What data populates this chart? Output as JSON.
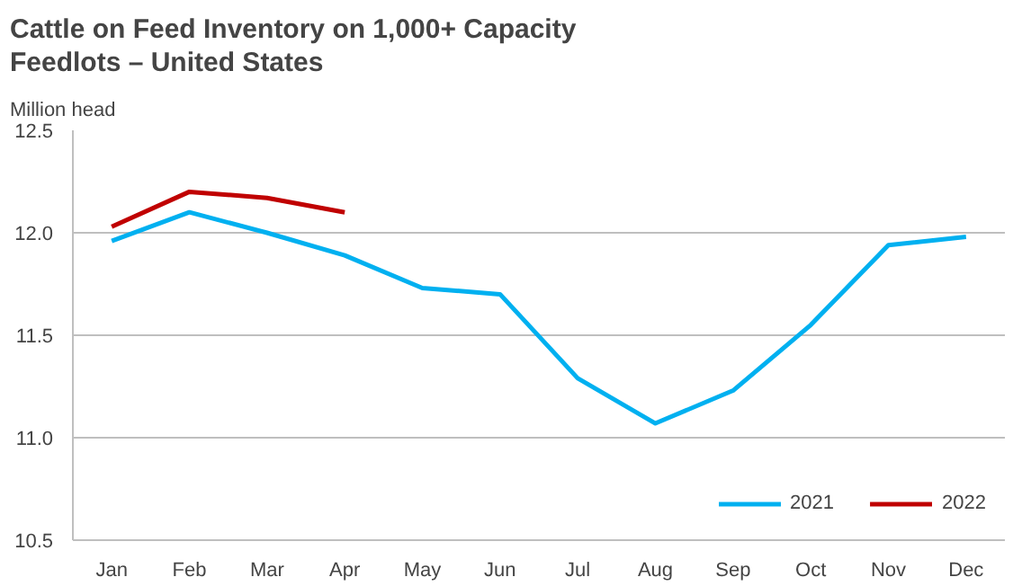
{
  "chart_data": {
    "type": "line",
    "title": "Cattle on Feed Inventory on 1,000+ Capacity Feedlots – United States",
    "ylabel": "Million head",
    "categories": [
      "Jan",
      "Feb",
      "Mar",
      "Apr",
      "May",
      "Jun",
      "Jul",
      "Aug",
      "Sep",
      "Oct",
      "Nov",
      "Dec"
    ],
    "series": [
      {
        "name": "2021",
        "color": "#00b0f0",
        "values": [
          11.96,
          12.1,
          12.0,
          11.89,
          11.73,
          11.7,
          11.29,
          11.07,
          11.23,
          11.55,
          11.94,
          11.98
        ]
      },
      {
        "name": "2022",
        "color": "#c00000",
        "values": [
          12.03,
          12.2,
          12.17,
          12.1,
          null,
          null,
          null,
          null,
          null,
          null,
          null,
          null
        ]
      }
    ],
    "ylim": [
      10.5,
      12.5
    ],
    "yticks": [
      {
        "value": 10.5,
        "label": "10.5"
      },
      {
        "value": 11,
        "label": "11.0"
      },
      {
        "value": 11.5,
        "label": "11.5"
      },
      {
        "value": 12,
        "label": "12.0"
      },
      {
        "value": 12.5,
        "label": "12.5"
      }
    ],
    "grid": "y",
    "legend": "bottom right",
    "marker": "none",
    "line_style": "solid"
  }
}
